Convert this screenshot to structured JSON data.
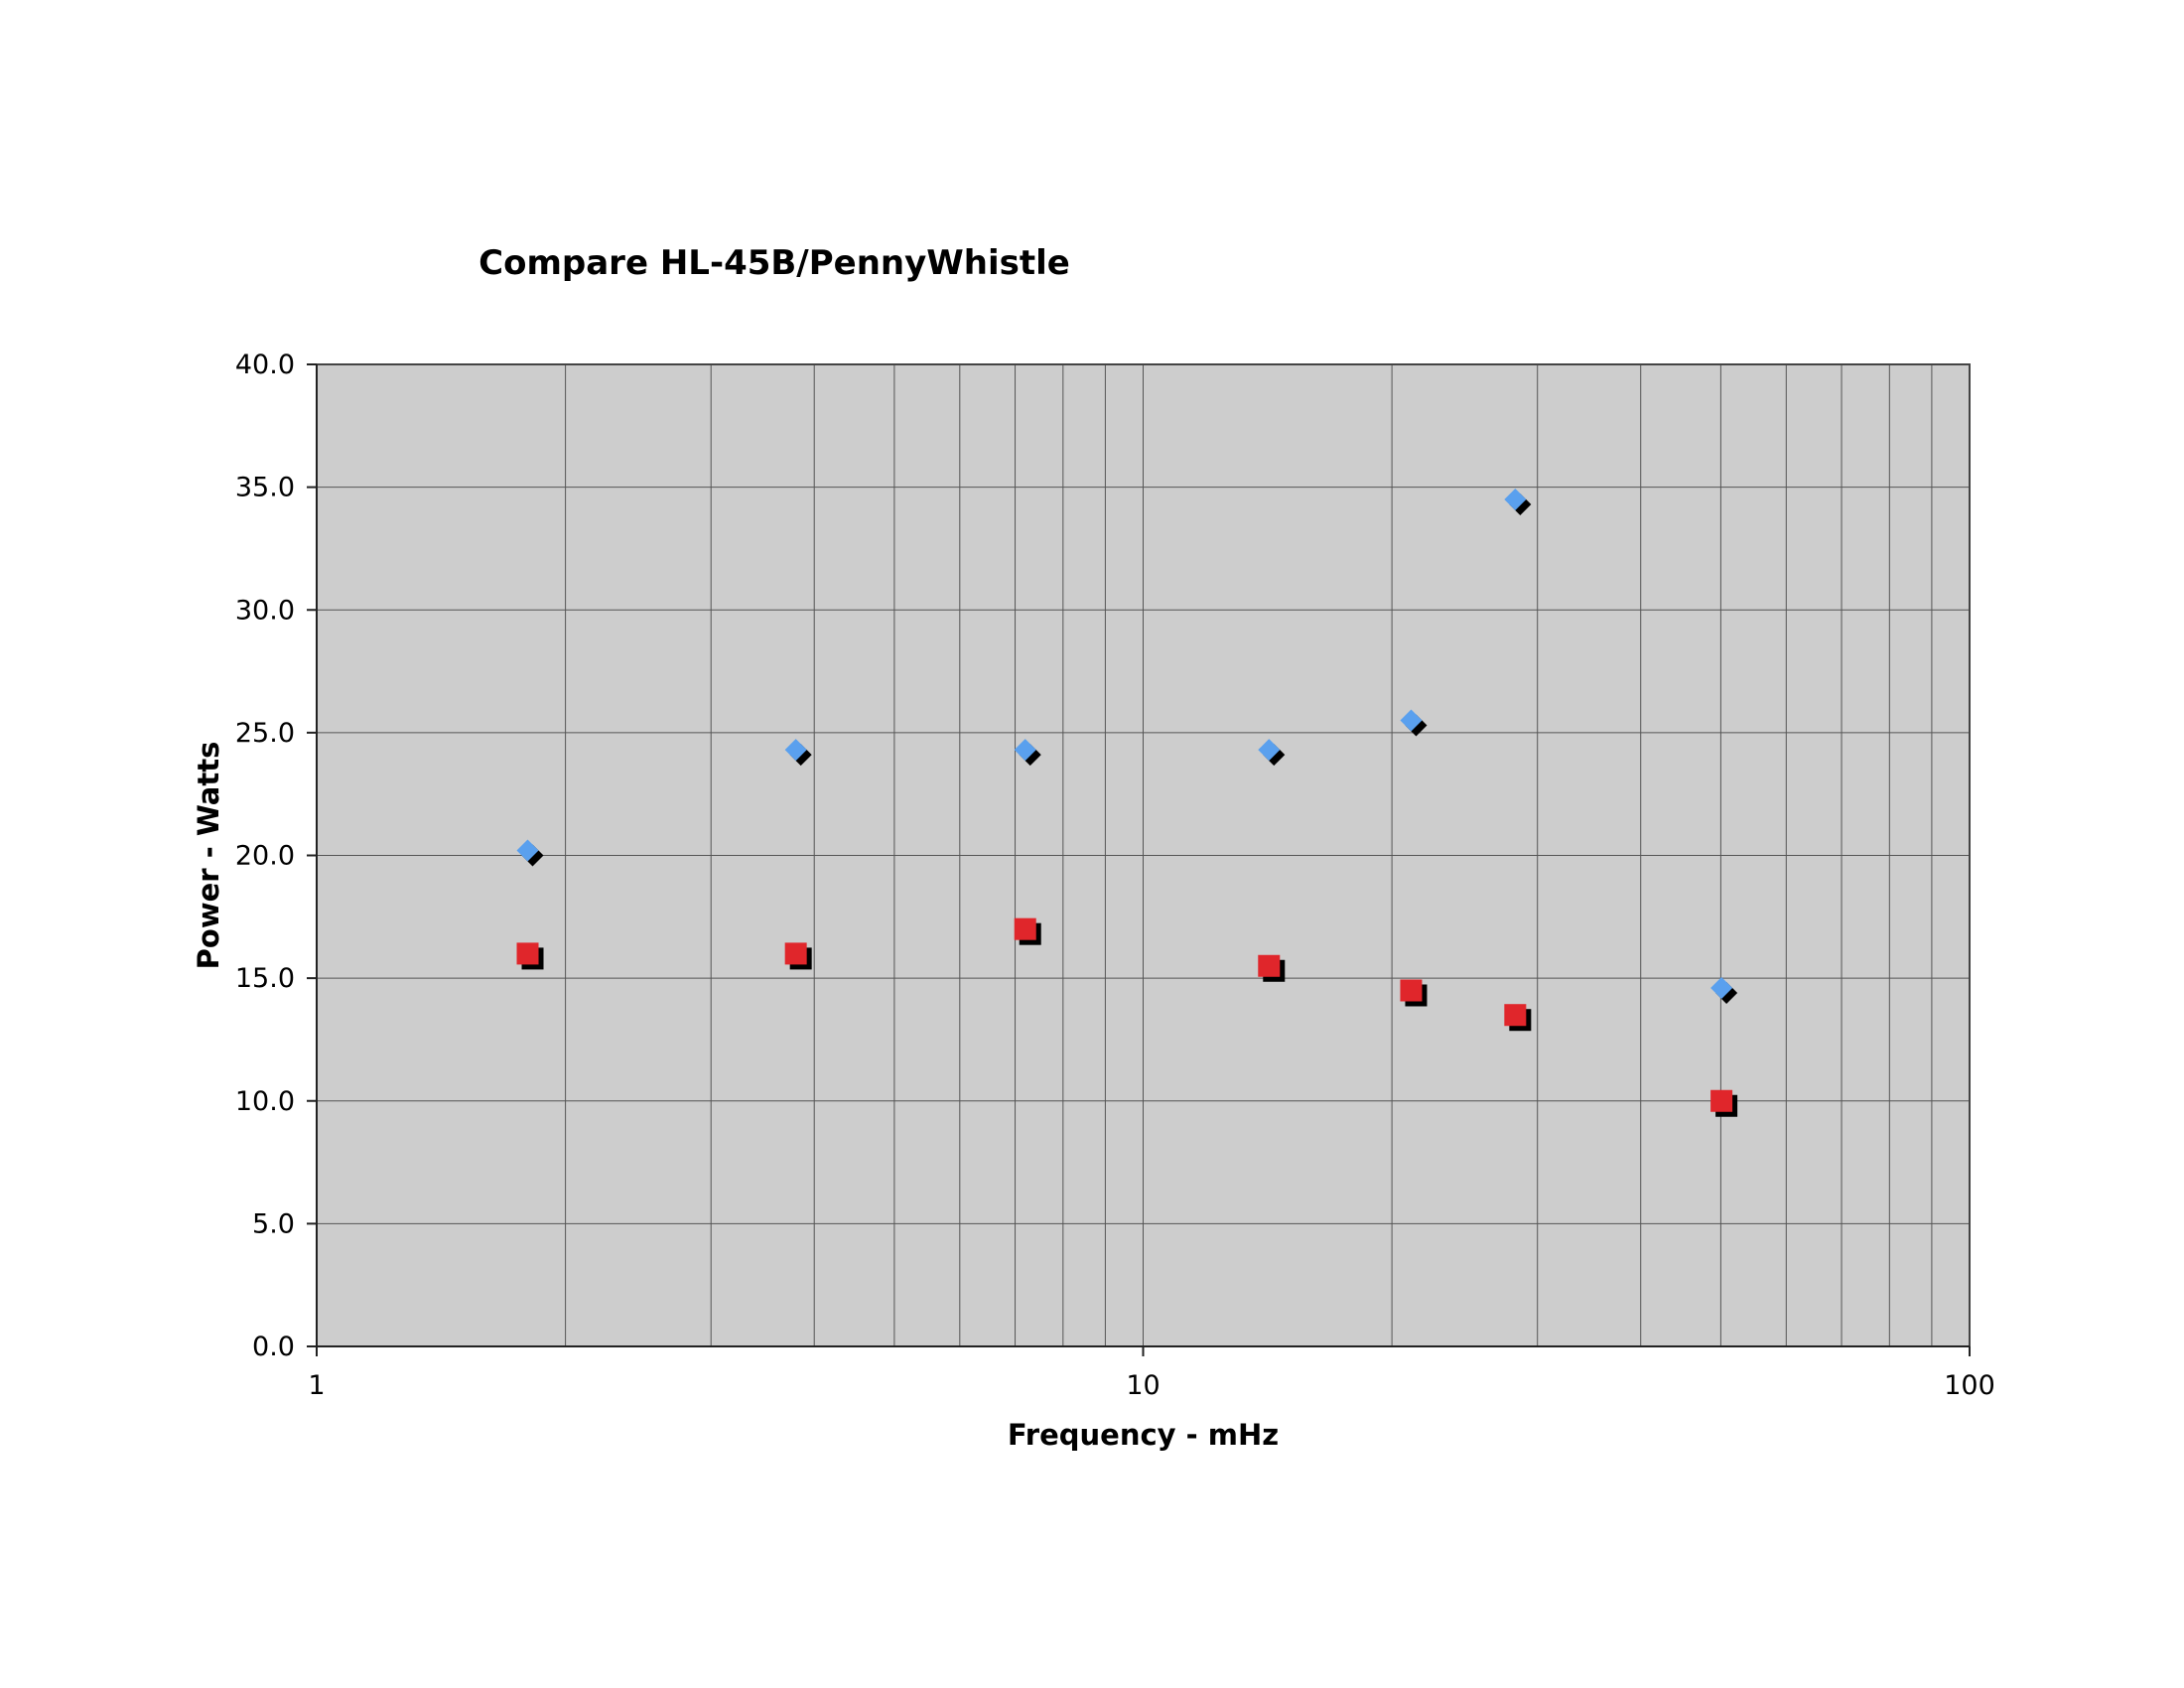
{
  "chart_data": {
    "type": "scatter",
    "title": "Compare HL-45B/PennyWhistle",
    "xlabel": "Frequency - mHz",
    "ylabel": "Power - Watts",
    "x_scale": "log",
    "xlim": [
      1,
      100
    ],
    "ylim": [
      0,
      40
    ],
    "x_ticks": [
      "1",
      "10",
      "100"
    ],
    "y_ticks": [
      "0.0",
      "5.0",
      "10.0",
      "15.0",
      "20.0",
      "25.0",
      "30.0",
      "35.0",
      "40.0"
    ],
    "grid": true,
    "legend": "none",
    "series": [
      {
        "marker": "diamond",
        "color": "#5aa0ee",
        "x": [
          1.8,
          3.8,
          7.2,
          14.2,
          21.1,
          28.2,
          50.1
        ],
        "y": [
          20.2,
          24.3,
          24.3,
          24.3,
          25.5,
          34.5,
          14.6
        ]
      },
      {
        "marker": "square",
        "color": "#e0262b",
        "x": [
          1.8,
          3.8,
          7.2,
          14.2,
          21.1,
          28.2,
          50.1
        ],
        "y": [
          16.0,
          16.0,
          17.0,
          15.5,
          14.5,
          13.5,
          10.0
        ]
      }
    ]
  },
  "colors": {
    "plot_background": "#cdcdcd",
    "gridline": "#555555",
    "axis": "#444444"
  }
}
